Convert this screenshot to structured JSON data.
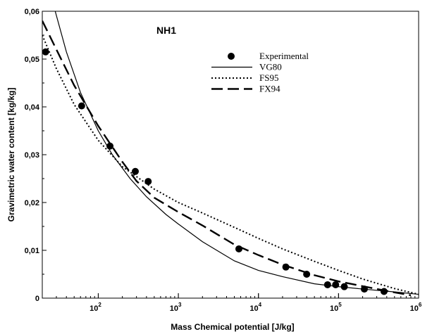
{
  "chart_data": {
    "type": "line",
    "title": "NH1",
    "xlabel": "Mass Chemical potential [J/kg]",
    "ylabel": "Gravimetric water content [kg/kg]",
    "xscale": "log",
    "xlim": [
      20,
      1000000
    ],
    "ylim": [
      0,
      0.06
    ],
    "x_ticks": [
      {
        "base": "10",
        "exp": "2",
        "value": 100
      },
      {
        "base": "10",
        "exp": "3",
        "value": 1000
      },
      {
        "base": "10",
        "exp": "4",
        "value": 10000
      },
      {
        "base": "10",
        "exp": "5",
        "value": 100000
      },
      {
        "base": "10",
        "exp": "6",
        "value": 1000000
      }
    ],
    "y_ticks": [
      {
        "label": "0",
        "value": 0
      },
      {
        "label": "0,01",
        "value": 0.01
      },
      {
        "label": "0,02",
        "value": 0.02
      },
      {
        "label": "0,03",
        "value": 0.03
      },
      {
        "label": "0,04",
        "value": 0.04
      },
      {
        "label": "0,05",
        "value": 0.05
      },
      {
        "label": "0,06",
        "value": 0.06
      }
    ],
    "grid": false,
    "legend_position": "upper-center",
    "series": [
      {
        "name": "Experimental",
        "style": "marker",
        "color": "#000000",
        "points": [
          [
            22,
            0.0515
          ],
          [
            62,
            0.0402
          ],
          [
            140,
            0.0318
          ],
          [
            290,
            0.0265
          ],
          [
            420,
            0.0244
          ],
          [
            5700,
            0.0103
          ],
          [
            22000,
            0.0065
          ],
          [
            40000,
            0.005
          ],
          [
            73000,
            0.0028
          ],
          [
            92000,
            0.0028
          ],
          [
            118000,
            0.0024
          ],
          [
            210000,
            0.0019
          ],
          [
            370000,
            0.0014
          ]
        ]
      },
      {
        "name": "VG80",
        "style": "solid",
        "color": "#000000",
        "points": [
          [
            29,
            0.06
          ],
          [
            40,
            0.0515
          ],
          [
            60,
            0.043
          ],
          [
            100,
            0.035
          ],
          [
            150,
            0.03
          ],
          [
            250,
            0.025
          ],
          [
            400,
            0.0212
          ],
          [
            700,
            0.0175
          ],
          [
            1000,
            0.0155
          ],
          [
            2000,
            0.0118
          ],
          [
            5000,
            0.0078
          ],
          [
            10000,
            0.0058
          ],
          [
            20000,
            0.0045
          ],
          [
            50000,
            0.003
          ],
          [
            100000,
            0.0024
          ],
          [
            200000,
            0.0019
          ],
          [
            500000,
            0.0013
          ],
          [
            1000000,
            0.0008
          ]
        ]
      },
      {
        "name": "FS95",
        "style": "dotted",
        "color": "#000000",
        "points": [
          [
            20,
            0.055
          ],
          [
            30,
            0.048
          ],
          [
            50,
            0.0405
          ],
          [
            100,
            0.033
          ],
          [
            200,
            0.0275
          ],
          [
            500,
            0.0228
          ],
          [
            1000,
            0.02
          ],
          [
            2000,
            0.0178
          ],
          [
            5000,
            0.0148
          ],
          [
            10000,
            0.0125
          ],
          [
            20000,
            0.0103
          ],
          [
            50000,
            0.0077
          ],
          [
            100000,
            0.0058
          ],
          [
            200000,
            0.004
          ],
          [
            500000,
            0.002
          ],
          [
            1000000,
            0.0008
          ]
        ]
      },
      {
        "name": "FX94",
        "style": "dashed",
        "color": "#000000",
        "points": [
          [
            20,
            0.058
          ],
          [
            30,
            0.052
          ],
          [
            50,
            0.0445
          ],
          [
            100,
            0.036
          ],
          [
            200,
            0.0285
          ],
          [
            300,
            0.0245
          ],
          [
            500,
            0.021
          ],
          [
            1000,
            0.018
          ],
          [
            2000,
            0.0152
          ],
          [
            5000,
            0.0112
          ],
          [
            10000,
            0.009
          ],
          [
            20000,
            0.007
          ],
          [
            50000,
            0.0048
          ],
          [
            100000,
            0.0035
          ],
          [
            200000,
            0.0025
          ],
          [
            500000,
            0.0012
          ],
          [
            800000,
            0.0006
          ]
        ]
      }
    ]
  }
}
